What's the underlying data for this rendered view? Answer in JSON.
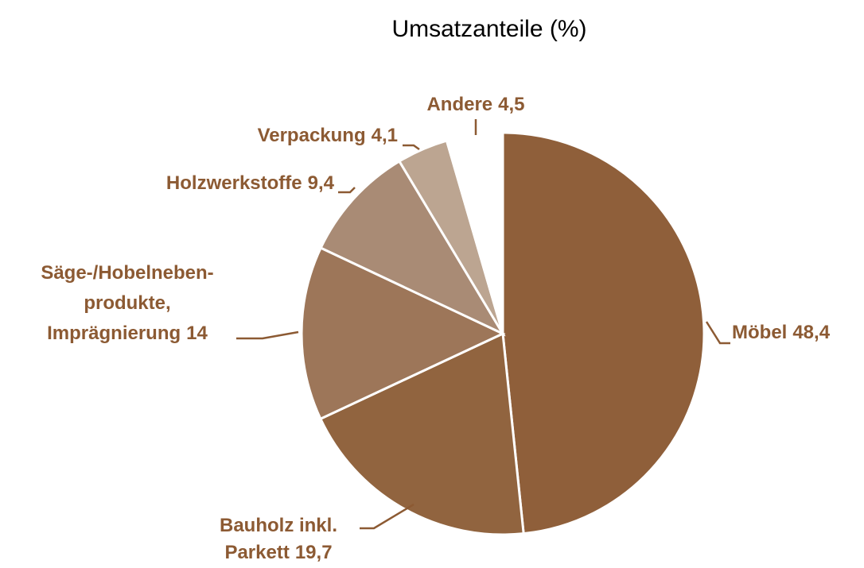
{
  "chart_data": {
    "type": "pie",
    "title": "Umsatzanteile (%)",
    "categories": [
      [
        "Möbel"
      ],
      [
        "Bauholz inkl.",
        "Parkett"
      ],
      [
        "Säge-/Hobelneben-",
        "produkte,",
        "Imprägnierung"
      ],
      [
        "Holzwerkstoffe"
      ],
      [
        "Verpackung"
      ],
      [
        "Andere"
      ]
    ],
    "values": [
      48.4,
      19.7,
      14,
      9.4,
      4.1,
      4.5
    ],
    "value_labels": [
      "48,4",
      "19,7",
      "14",
      "9,4",
      "4,1",
      "4,5"
    ],
    "colors": [
      "#8f5f3a",
      "#91643f",
      "#9d7659",
      "#a98b75",
      "#bca591",
      "#ffffff"
    ]
  }
}
